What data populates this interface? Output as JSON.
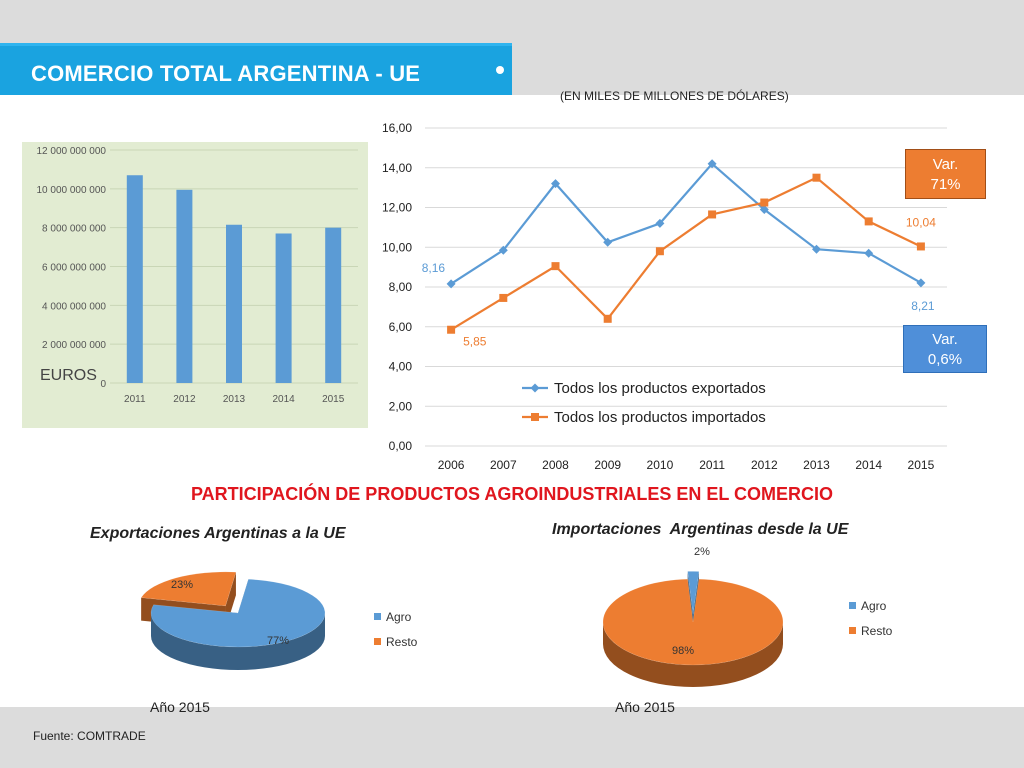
{
  "header": {
    "title": "COMERCIO TOTAL ARGENTINA - UE"
  },
  "subtitle": "(EN MILES DE MILLONES DE DÓLARES)",
  "section_title": "PARTICIPACIÓN DE PRODUCTOS AGROINDUSTRIALES EN EL COMERCIO",
  "footer": "Fuente: COMTRADE",
  "colors": {
    "accent": "#1aa3e0",
    "blue": "#5b9bd5",
    "orange": "#ed7d31",
    "red_title": "#e0161e",
    "green_bg": "#e2ecd2"
  },
  "badges": {
    "import_var": {
      "line1": "Var.",
      "line2": "71%"
    },
    "export_var": {
      "line1": "Var.",
      "line2": "0,6%"
    }
  },
  "chart_data": [
    {
      "type": "bar",
      "categories": [
        "2011",
        "2012",
        "2013",
        "2014",
        "2015"
      ],
      "values": [
        10700000000,
        9950000000,
        8150000000,
        7700000000,
        8000000000
      ],
      "ylim": [
        0,
        12000000000
      ],
      "yticks": [
        "0",
        "2 000 000 000",
        "4 000 000 000",
        "6 000 000 000",
        "8 000 000 000",
        "10 000 000 000",
        "12 000 000 000"
      ],
      "ylabel": "EUROS",
      "grid": true
    },
    {
      "type": "line",
      "x": [
        "2006",
        "2007",
        "2008",
        "2009",
        "2010",
        "2011",
        "2012",
        "2013",
        "2014",
        "2015"
      ],
      "ylim": [
        0,
        16
      ],
      "yticks": [
        "0,00",
        "2,00",
        "4,00",
        "6,00",
        "8,00",
        "10,00",
        "12,00",
        "14,00",
        "16,00"
      ],
      "series": [
        {
          "name": "Todos los productos exportados",
          "values": [
            8.16,
            9.85,
            13.2,
            10.25,
            11.2,
            14.2,
            11.9,
            9.9,
            9.7,
            8.21
          ],
          "color": "#5b9bd5",
          "marker": "diamond",
          "labels": {
            "0": "8,16",
            "9": "8,21"
          }
        },
        {
          "name": "Todos los productos importados",
          "values": [
            5.85,
            7.45,
            9.05,
            6.4,
            9.8,
            11.65,
            12.25,
            13.5,
            11.3,
            10.04
          ],
          "color": "#ed7d31",
          "marker": "square",
          "labels": {
            "0": "5,85",
            "9": "10,04"
          }
        }
      ],
      "legend": "inside-bottom-left",
      "grid": true
    },
    {
      "type": "pie",
      "title": "Exportaciones Argentinas a la UE",
      "year": "Año 2015",
      "slices": [
        {
          "label": "Agro",
          "value": 77,
          "text": "77%",
          "color": "#5b9bd5"
        },
        {
          "label": "Resto",
          "value": 23,
          "text": "23%",
          "color": "#ed7d31"
        }
      ]
    },
    {
      "type": "pie",
      "title": "Importaciones  Argentinas desde la UE",
      "year": "Año 2015",
      "slices": [
        {
          "label": "Agro",
          "value": 2,
          "text": "2%",
          "color": "#5b9bd5"
        },
        {
          "label": "Resto",
          "value": 98,
          "text": "98%",
          "color": "#ed7d31"
        }
      ]
    }
  ]
}
